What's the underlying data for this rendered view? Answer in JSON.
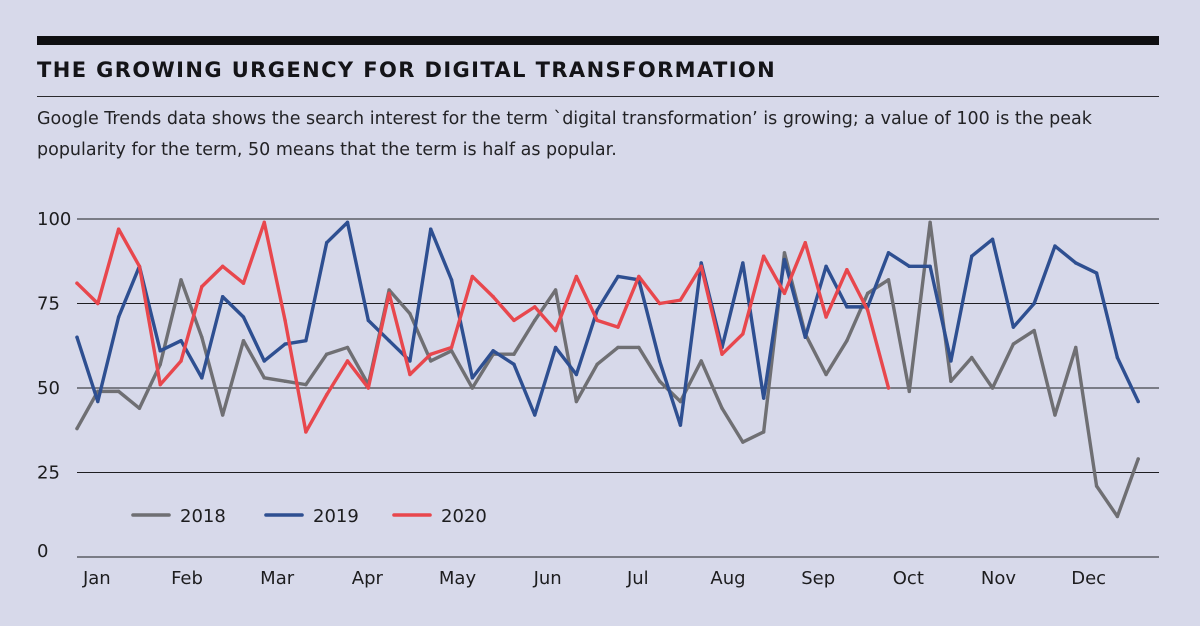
{
  "header": {
    "title": "THE GROWING URGENCY FOR DIGITAL TRANSFORMATION",
    "subtitle": "Google Trends data shows the search interest for the term `digital transformation’ is growing; a value of 100 is the peak popularity for the term, 50 means that the term is half as popular."
  },
  "chart_data": {
    "type": "line",
    "title": "THE GROWING URGENCY FOR DIGITAL TRANSFORMATION",
    "xlabel": "",
    "ylabel": "",
    "ylim": [
      0,
      100
    ],
    "yticks": [
      0,
      25,
      50,
      75,
      100
    ],
    "xlim": [
      0,
      52
    ],
    "x_tick_labels": [
      "Jan",
      "Feb",
      "Mar",
      "Apr",
      "May",
      "Jun",
      "Jul",
      "Aug",
      "Sep",
      "Oct",
      "Nov",
      "Dec"
    ],
    "grid": "horizontal",
    "legend": "bottom-left",
    "series": [
      {
        "name": "2018",
        "color": "#6f6f73",
        "values": [
          38,
          49,
          49,
          44,
          57,
          82,
          65,
          42,
          64,
          53,
          52,
          51,
          60,
          62,
          51,
          79,
          72,
          58,
          61,
          50,
          60,
          60,
          70,
          79,
          46,
          57,
          62,
          62,
          52,
          46,
          58,
          44,
          34,
          37,
          90,
          66,
          54,
          64,
          78,
          82,
          49,
          99,
          52,
          59,
          50,
          63,
          67,
          42,
          62,
          21,
          12,
          29
        ]
      },
      {
        "name": "2019",
        "color": "#2e4f91",
        "values": [
          65,
          46,
          71,
          86,
          61,
          64,
          53,
          77,
          71,
          58,
          63,
          64,
          93,
          99,
          70,
          64,
          58,
          97,
          82,
          53,
          61,
          57,
          42,
          62,
          54,
          73,
          83,
          82,
          58,
          39,
          87,
          62,
          87,
          47,
          88,
          65,
          86,
          74,
          74,
          90,
          86,
          86,
          58,
          89,
          94,
          68,
          75,
          92,
          87,
          84,
          59,
          46
        ]
      },
      {
        "name": "2020",
        "color": "#e8474d",
        "values": [
          81,
          75,
          97,
          86,
          51,
          58,
          80,
          86,
          81,
          99,
          70,
          37,
          48,
          58,
          50,
          78,
          54,
          60,
          62,
          83,
          77,
          70,
          74,
          67,
          83,
          70,
          68,
          83,
          75,
          76,
          86,
          60,
          66,
          89,
          78,
          93,
          71,
          85,
          73,
          50
        ]
      }
    ]
  }
}
